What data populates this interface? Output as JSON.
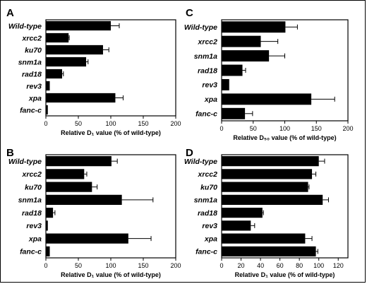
{
  "chart_data": [
    {
      "panel": "A",
      "type": "bar",
      "orientation": "horizontal",
      "categories": [
        "Wild-type",
        "xrcc2",
        "ku70",
        "snm1a",
        "rad18",
        "rev3",
        "xpa",
        "fanc-c"
      ],
      "values": [
        100,
        35,
        88,
        62,
        25,
        6,
        107,
        3
      ],
      "errors": [
        13,
        1,
        9,
        3,
        2,
        0,
        12,
        0
      ],
      "xlabel": "Relative D₁ value (% of wild-type)",
      "xlim": [
        0,
        200
      ],
      "xticks": [
        0,
        50,
        100,
        150,
        200
      ],
      "grid": false,
      "bar_color": "#000000"
    },
    {
      "panel": "C",
      "type": "bar",
      "orientation": "horizontal",
      "categories": [
        "Wild-type",
        "xrcc2",
        "snm1a",
        "rad18",
        "rev3",
        "xpa",
        "fanc-c"
      ],
      "values": [
        101,
        62,
        75,
        33,
        12,
        142,
        37
      ],
      "errors": [
        19,
        27,
        25,
        5,
        0,
        37,
        12
      ],
      "xlabel": "Relative D₅₀ value (% of wild-type)",
      "xlim": [
        0,
        200
      ],
      "xticks": [
        0,
        50,
        100,
        150,
        200
      ],
      "grid": false,
      "bar_color": "#000000"
    },
    {
      "panel": "B",
      "type": "bar",
      "orientation": "horizontal",
      "categories": [
        "Wild-type",
        "xrcc2",
        "ku70",
        "snm1a",
        "rad18",
        "rev3",
        "xpa",
        "fanc-c"
      ],
      "values": [
        101,
        59,
        71,
        117,
        11,
        3,
        127,
        6
      ],
      "errors": [
        9,
        4,
        8,
        48,
        3,
        0,
        35,
        0
      ],
      "xlabel": "Relative D₁ value (% of wild-type)",
      "xlim": [
        0,
        200
      ],
      "xticks": [
        0,
        50,
        100,
        150,
        200
      ],
      "grid": false,
      "bar_color": "#000000"
    },
    {
      "panel": "D",
      "type": "bar",
      "orientation": "horizontal",
      "categories": [
        "Wild-type",
        "xrcc2",
        "ku70",
        "snm1a",
        "rad18",
        "rev3",
        "xpa",
        "fanc-c"
      ],
      "values": [
        100,
        93,
        89,
        104,
        42,
        30,
        86,
        97
      ],
      "errors": [
        6,
        4,
        1,
        6,
        1,
        4,
        7,
        2
      ],
      "xlabel": "Relative D₁ value (% of wild-type)",
      "xlim": [
        0,
        130
      ],
      "xticks": [
        0,
        20,
        40,
        60,
        80,
        100,
        120
      ],
      "grid": false,
      "bar_color": "#000000"
    }
  ]
}
